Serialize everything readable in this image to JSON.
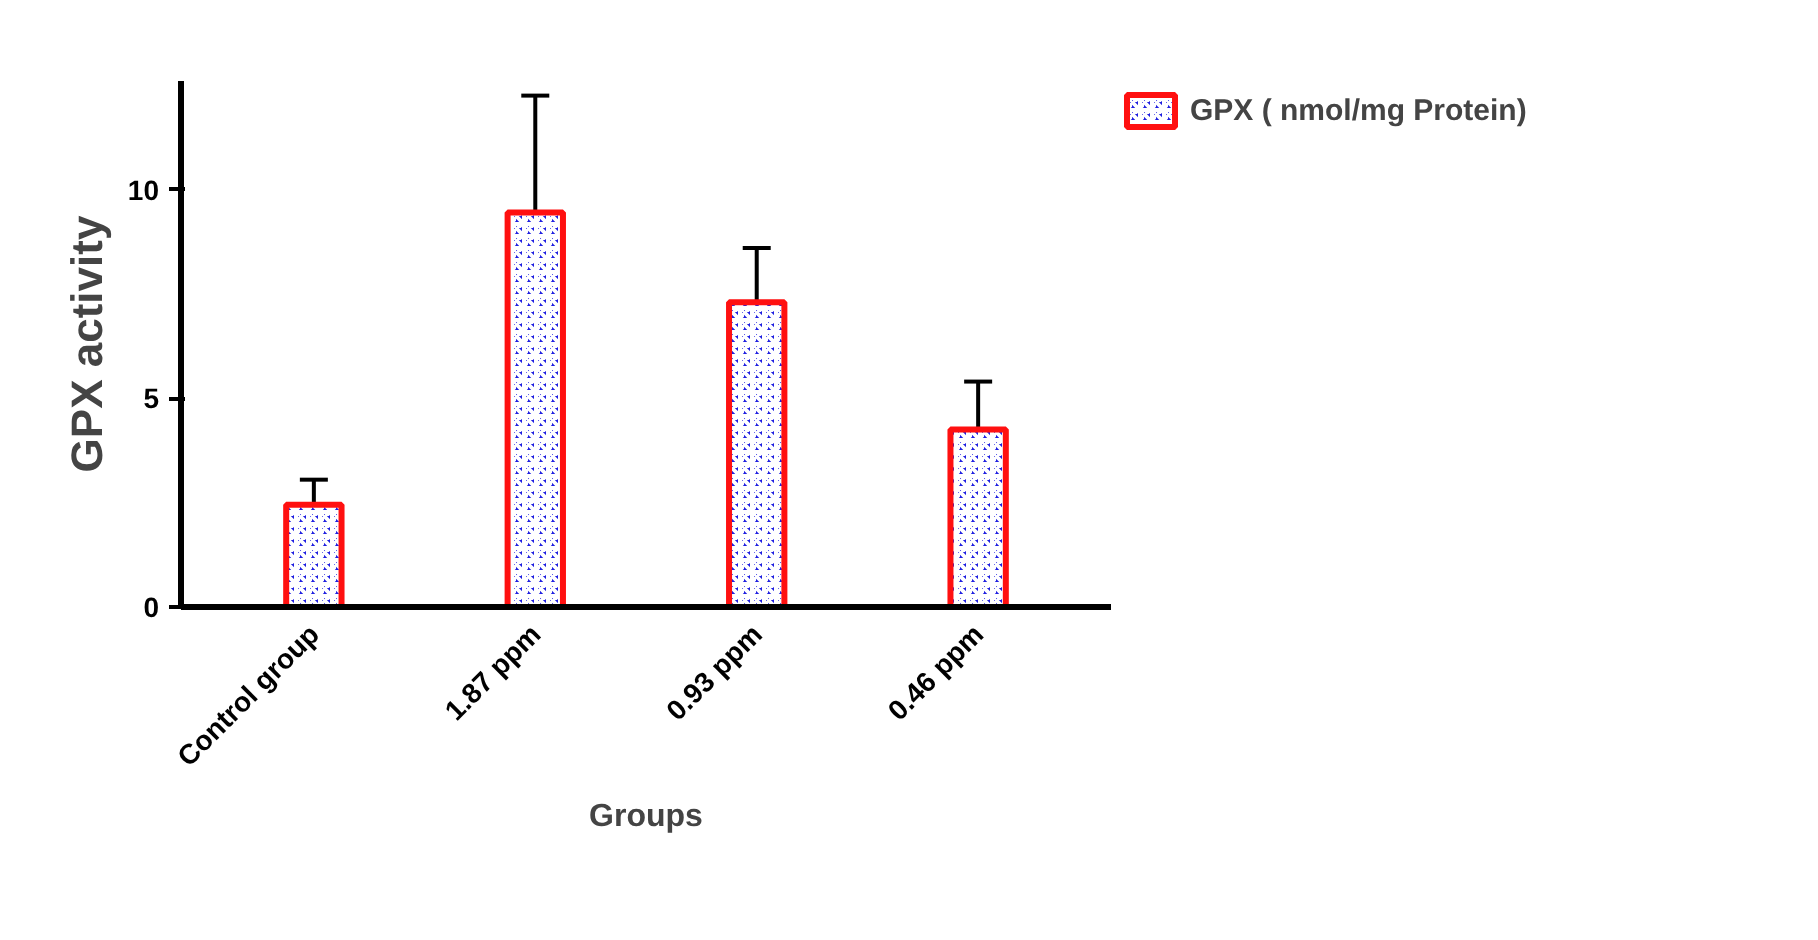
{
  "chart_data": {
    "type": "bar",
    "xlabel": "Groups",
    "ylabel": "GPX activity",
    "categories": [
      "Control group",
      "1.87 ppm",
      "0.93 ppm",
      "0.46 ppm"
    ],
    "series": [
      {
        "name": "GPX ( nmol/mg Protein)",
        "color": "#1f1fe0",
        "values": [
          2.45,
          9.45,
          7.3,
          4.25
        ],
        "errors": [
          0.6,
          2.8,
          1.3,
          1.15
        ]
      }
    ],
    "ylim": [
      0,
      12.6
    ],
    "yticks": [
      0,
      5,
      10
    ],
    "grid": false,
    "legend": "top right"
  }
}
